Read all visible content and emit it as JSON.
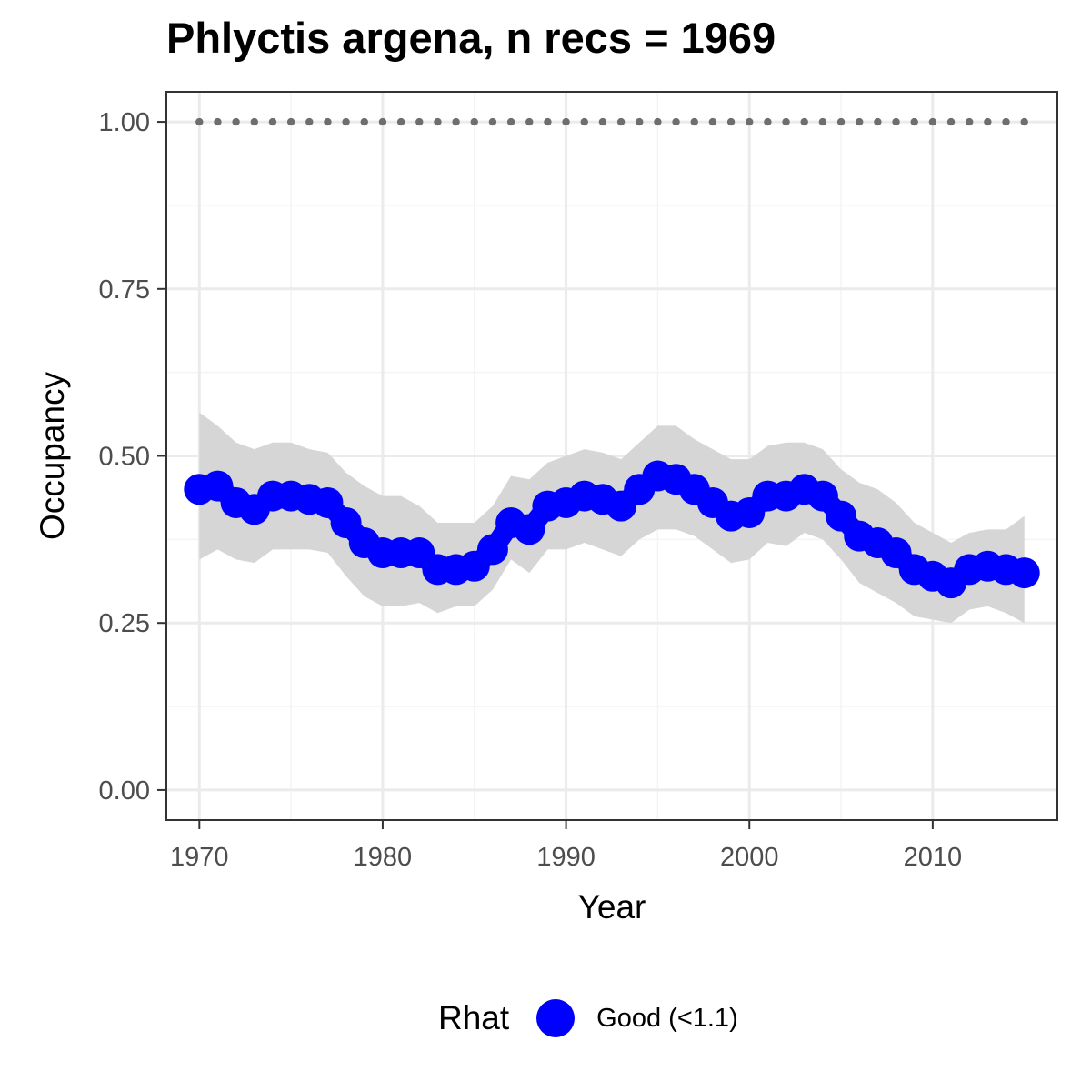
{
  "title": "Phlyctis argena, n recs = 1969",
  "colors": {
    "series": "#0000ff",
    "ribbon": "#d6d6d6",
    "reference": "#6e6e6e",
    "grid_major": "#ebebeb",
    "grid_minor": "#f4f4f4",
    "panel_border": "#333333"
  },
  "chart_data": {
    "type": "line",
    "title": "Phlyctis argena, n recs = 1969",
    "xlabel": "Year",
    "ylabel": "Occupancy",
    "xlim": [
      1968.2,
      2016.8
    ],
    "ylim": [
      -0.045,
      1.045
    ],
    "x_ticks": [
      1970,
      1980,
      1990,
      2000,
      2010
    ],
    "y_ticks": [
      0.0,
      0.25,
      0.5,
      0.75,
      1.0
    ],
    "x_tick_labels": [
      "1970",
      "1980",
      "1990",
      "2000",
      "2010"
    ],
    "y_tick_labels": [
      "0.00",
      "0.25",
      "0.50",
      "0.75",
      "1.00"
    ],
    "grid": true,
    "x": [
      1970,
      1971,
      1972,
      1973,
      1974,
      1975,
      1976,
      1977,
      1978,
      1979,
      1980,
      1981,
      1982,
      1983,
      1984,
      1985,
      1986,
      1987,
      1988,
      1989,
      1990,
      1991,
      1992,
      1993,
      1994,
      1995,
      1996,
      1997,
      1998,
      1999,
      2000,
      2001,
      2002,
      2003,
      2004,
      2005,
      2006,
      2007,
      2008,
      2009,
      2010,
      2011,
      2012,
      2013,
      2014,
      2015
    ],
    "series": [
      {
        "name": "Good (<1.1)",
        "values": [
          0.45,
          0.455,
          0.43,
          0.42,
          0.44,
          0.44,
          0.435,
          0.43,
          0.4,
          0.37,
          0.355,
          0.355,
          0.355,
          0.33,
          0.33,
          0.335,
          0.36,
          0.4,
          0.39,
          0.425,
          0.43,
          0.44,
          0.435,
          0.425,
          0.45,
          0.47,
          0.465,
          0.45,
          0.43,
          0.41,
          0.415,
          0.44,
          0.44,
          0.45,
          0.44,
          0.41,
          0.38,
          0.37,
          0.355,
          0.33,
          0.32,
          0.31,
          0.33,
          0.335,
          0.33,
          0.325
        ],
        "lower": [
          0.345,
          0.36,
          0.345,
          0.34,
          0.36,
          0.36,
          0.36,
          0.355,
          0.32,
          0.29,
          0.275,
          0.275,
          0.28,
          0.265,
          0.275,
          0.275,
          0.3,
          0.345,
          0.325,
          0.36,
          0.36,
          0.37,
          0.36,
          0.35,
          0.375,
          0.39,
          0.39,
          0.38,
          0.36,
          0.34,
          0.345,
          0.37,
          0.365,
          0.385,
          0.375,
          0.345,
          0.31,
          0.295,
          0.28,
          0.26,
          0.255,
          0.25,
          0.27,
          0.275,
          0.265,
          0.25
        ],
        "upper": [
          0.565,
          0.545,
          0.52,
          0.51,
          0.52,
          0.52,
          0.51,
          0.505,
          0.475,
          0.455,
          0.44,
          0.44,
          0.425,
          0.4,
          0.4,
          0.4,
          0.425,
          0.47,
          0.465,
          0.49,
          0.5,
          0.51,
          0.505,
          0.495,
          0.52,
          0.545,
          0.545,
          0.525,
          0.51,
          0.495,
          0.495,
          0.515,
          0.52,
          0.52,
          0.51,
          0.48,
          0.46,
          0.45,
          0.43,
          0.4,
          0.385,
          0.37,
          0.385,
          0.39,
          0.39,
          0.41
        ]
      }
    ],
    "reference_line": {
      "y": 1.0,
      "style": "dotted"
    },
    "legend": {
      "title": "Rhat",
      "entries": [
        "Good (<1.1)"
      ],
      "position": "bottom"
    }
  }
}
